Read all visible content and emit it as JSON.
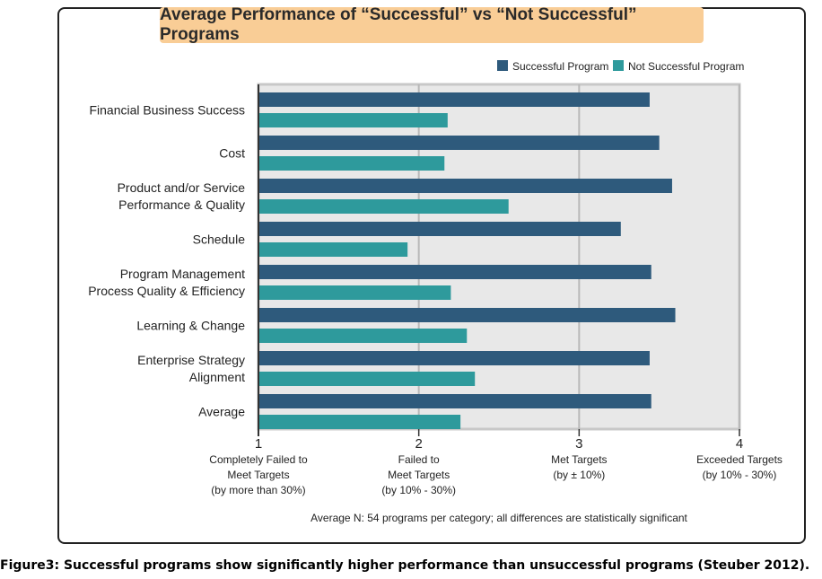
{
  "caption": "Figure3: Successful programs show significantly higher performance than unsuccessful programs (Steuber 2012).",
  "chart_data": {
    "type": "bar",
    "orientation": "horizontal",
    "title": "Average Performance of “Successful” vs “Not Successful” Programs",
    "categories": [
      [
        "Financial Business Success"
      ],
      [
        "Cost"
      ],
      [
        "Product and/or Service",
        "Performance & Quality"
      ],
      [
        "Schedule"
      ],
      [
        "Program Management",
        "Process Quality & Efficiency"
      ],
      [
        "Learning & Change"
      ],
      [
        "Enterprise Strategy",
        "Alignment"
      ],
      [
        "Average"
      ]
    ],
    "series": [
      {
        "name": "Successful Program",
        "color": "#2e5a7c",
        "values": [
          3.44,
          3.5,
          3.58,
          3.26,
          3.45,
          3.6,
          3.44,
          3.45
        ]
      },
      {
        "name": "Not Successful Program",
        "color": "#2e9a9c",
        "values": [
          2.18,
          2.16,
          2.56,
          1.93,
          2.2,
          2.3,
          2.35,
          2.26
        ]
      }
    ],
    "xlim": [
      1,
      4
    ],
    "ticks": [
      {
        "value": 1,
        "label": "1",
        "desc": [
          "Completely Failed to",
          "Meet Targets",
          "(by more than 30%)"
        ]
      },
      {
        "value": 2,
        "label": "2",
        "desc": [
          "Failed to",
          "Meet Targets",
          "(by 10% - 30%)"
        ]
      },
      {
        "value": 3,
        "label": "3",
        "desc": [
          "Met Targets",
          "(by ± 10%)"
        ]
      },
      {
        "value": 4,
        "label": "4",
        "desc": [
          "Exceeded Targets",
          "(by 10% - 30%)"
        ]
      }
    ],
    "grid": true,
    "legend_position": "top-right",
    "note": "Average N: 54 programs per category; all differences are statistically significant",
    "colors": {
      "plot_bg": "#e8e8e8",
      "grid": "#b8b8b8"
    }
  }
}
